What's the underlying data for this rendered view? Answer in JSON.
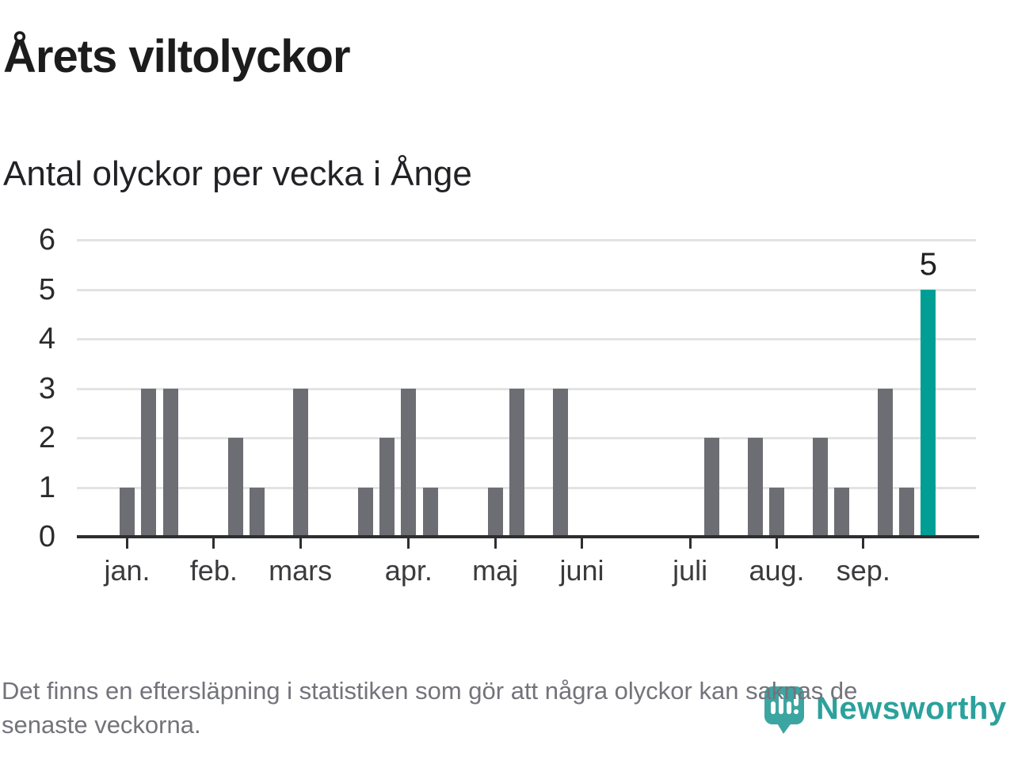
{
  "title": "Årets viltolyckor",
  "subtitle": "Antal olyckor per vecka i Ånge",
  "footer": {
    "line1": "Det finns en eftersläpning i statistiken som gör att några olyckor kan saknas de",
    "line2": "senaste veckorna."
  },
  "logo": {
    "wordmark": "Newsworthy",
    "icon": "newsworthy-pin-barchart-icon",
    "color": "#2ba19c"
  },
  "chart_data": {
    "type": "bar",
    "title": "Årets viltolyckor",
    "subtitle": "Antal olyckor per vecka i Ånge",
    "x_unit": "vecka (week number)",
    "weeks": [
      1,
      2,
      3,
      4,
      5,
      6,
      7,
      8,
      9,
      10,
      11,
      12,
      13,
      14,
      15,
      16,
      17,
      18,
      19,
      20,
      21,
      22,
      23,
      24,
      25,
      26,
      27,
      28,
      29,
      30,
      31,
      32,
      33,
      34,
      35,
      36,
      37,
      38
    ],
    "values": [
      1,
      3,
      3,
      0,
      0,
      2,
      1,
      0,
      3,
      0,
      0,
      1,
      2,
      3,
      1,
      0,
      0,
      1,
      3,
      0,
      3,
      0,
      0,
      0,
      0,
      0,
      0,
      2,
      0,
      2,
      1,
      0,
      2,
      1,
      0,
      3,
      1,
      5
    ],
    "highlight": {
      "week": 38,
      "value": 5,
      "label": "5"
    },
    "xticks": [
      {
        "label": "jan.",
        "week": 1
      },
      {
        "label": "feb.",
        "week": 5
      },
      {
        "label": "mars",
        "week": 9
      },
      {
        "label": "apr.",
        "week": 14
      },
      {
        "label": "maj",
        "week": 18
      },
      {
        "label": "juni",
        "week": 22
      },
      {
        "label": "juli",
        "week": 27
      },
      {
        "label": "aug.",
        "week": 31
      },
      {
        "label": "sep.",
        "week": 35
      }
    ],
    "ylim": [
      0,
      6
    ],
    "yticks": [
      0,
      1,
      2,
      3,
      4,
      5,
      6
    ],
    "grid": true,
    "legend_position": "none",
    "colors": {
      "bar": "#6d6d74",
      "highlight": "#009e94",
      "gridline": "#e3e3e4",
      "axis": "#2e2e30"
    }
  }
}
